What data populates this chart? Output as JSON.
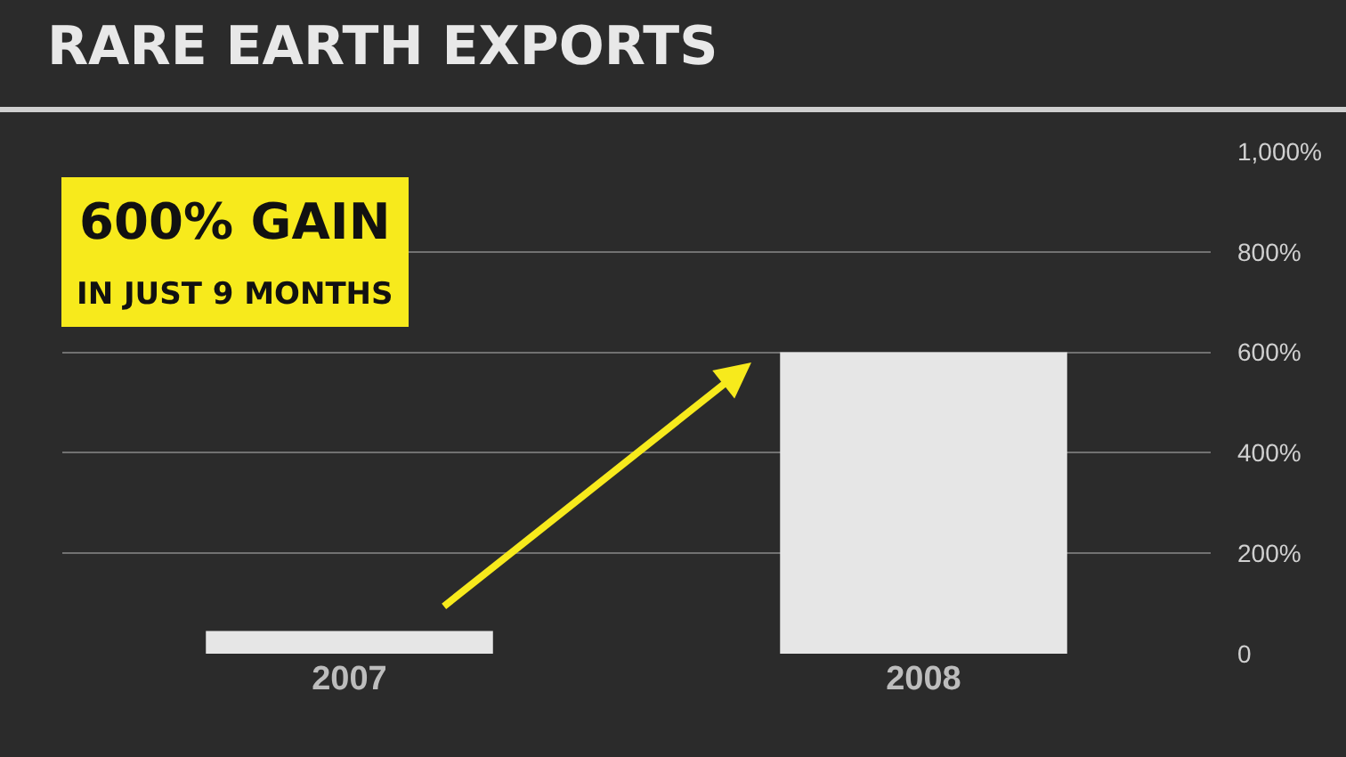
{
  "chart_data": {
    "type": "bar",
    "title": "RARE EARTH EXPORTS",
    "categories": [
      "2007",
      "2008"
    ],
    "values": [
      45,
      600
    ],
    "color": "#e6e6e6",
    "ylim": [
      0,
      1000
    ],
    "yticks": [
      0,
      {
        "value": 200,
        "label": "200%"
      },
      {
        "value": 400,
        "label": "400%"
      },
      {
        "value": 600,
        "label": "600%"
      },
      {
        "value": 800,
        "label": "800%"
      },
      {
        "value": 1000,
        "label": "1,000%"
      }
    ],
    "grid": "y",
    "annotations": [
      "600% GAIN",
      "IN JUST 9 MONTHS"
    ]
  }
}
